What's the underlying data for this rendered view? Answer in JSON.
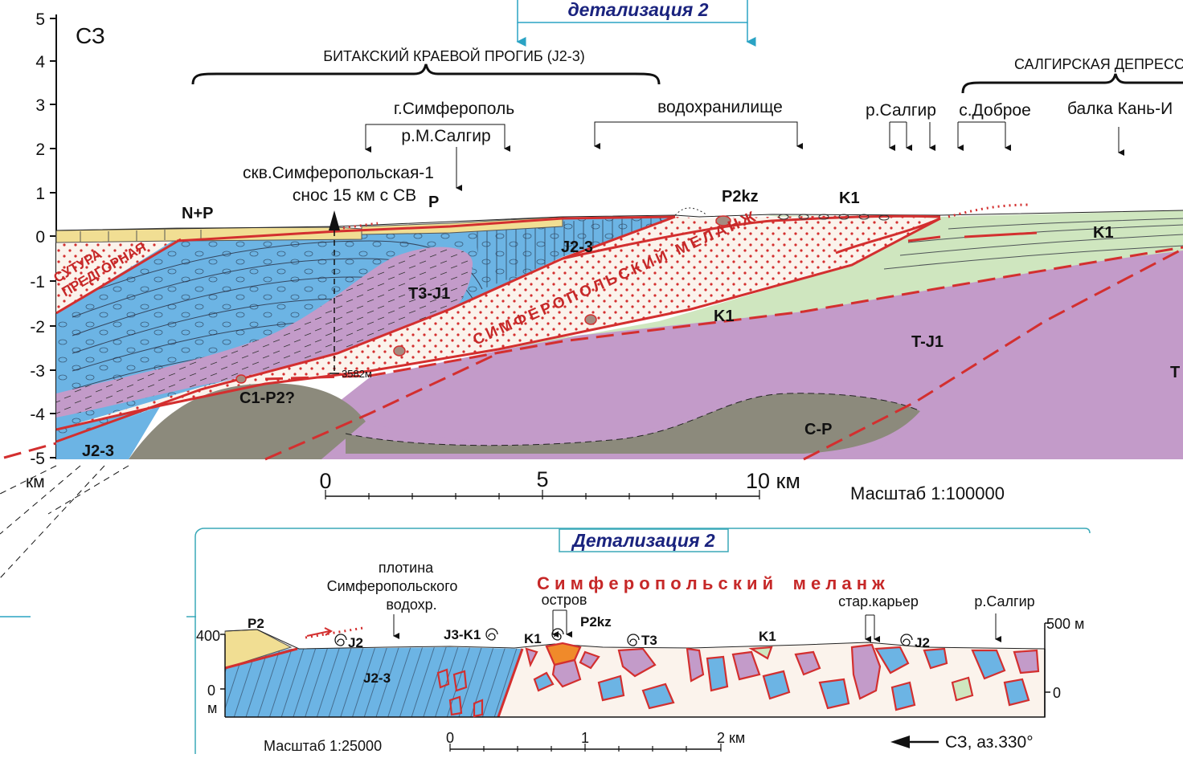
{
  "main_section": {
    "direction_label": "СЗ",
    "detail_box_label": "детализация 2",
    "y_axis": {
      "ticks": [
        "5",
        "4",
        "3",
        "2",
        "1",
        "0",
        "-1",
        "-2",
        "-3",
        "-4",
        "-5"
      ],
      "unit": "км"
    },
    "regions": {
      "bitak": "БИТАКСКИЙ КРАЕВОЙ ПРОГИБ (J2-3)",
      "salgir": "САЛГИРСКАЯ ДЕПРЕСС"
    },
    "places": {
      "simferopol": "г.Симферополь",
      "m_salgir": "р.М.Салгир",
      "reservoir": "водохранилище",
      "salgir_river": "р.Салгир",
      "dobroe": "с.Доброе",
      "kan_balka": "балка Кань-И"
    },
    "well": {
      "name": "скв.Симферопольская-1",
      "offset": "снос 15 км с СВ",
      "depth": "3582м"
    },
    "suture": "СУТУРА ПРЕДГОРНАЯ",
    "suture_lines": [
      "СУТУРА",
      "ПРЕДГОРНАЯ"
    ],
    "melange": "СИМФЕРОПОЛЬСКИЙ МЕЛАНЖ",
    "units": {
      "n_p": "N+P",
      "p": "P",
      "p2kz": "P2kz",
      "k1_top": "K1",
      "j23": "J2-3",
      "t3j1": "T3-J1",
      "k1_mid": "K1",
      "tj1": "T-J1",
      "k1_right": "K1",
      "c1p2": "C1-P2?",
      "cp": "C-P",
      "j23_bottom": "J2-3",
      "t_right": "T"
    },
    "scale_bar": {
      "labels": [
        "0",
        "5",
        "10 км"
      ],
      "scale_text": "Масштаб 1:100000"
    }
  },
  "detail_section": {
    "title": "Детализация 2",
    "dam_lines": [
      "плотина",
      "Симферопольского",
      "водохр."
    ],
    "melange_title": "С и м ф е р о п о л ь с к и й    м е л а н ж",
    "island": "остров",
    "old_quarry": "стар.карьер",
    "salgir": "р.Салгир",
    "units": {
      "p2": "P2",
      "j2_left": "J2",
      "j3k1": "J3-K1",
      "k1_a": "K1",
      "p2kz": "P2kz",
      "t3": "T3",
      "k1_b": "K1",
      "j2_right": "J2",
      "j23": "J2-3"
    },
    "left_axis": {
      "top": "400",
      "zero": "0",
      "unit": "м"
    },
    "right_axis": {
      "top": "500 м",
      "zero": "0"
    },
    "scale_bar": {
      "labels": [
        "0",
        "1",
        "2 км"
      ],
      "scale_text": "Масштаб  1:25000"
    },
    "direction": "СЗ, аз.330°"
  },
  "colors": {
    "jurassic_blue": "#6cb4e4",
    "triassic_violet": "#c39bc9",
    "cretaceous_green": "#cfe6bf",
    "paleozoic_grey": "#8c8a7c",
    "neogene_yellow": "#f1de93",
    "melange_white": "#fbf3ec",
    "fault_red": "#d32f2f",
    "detail_frame": "#3aa9b8"
  }
}
